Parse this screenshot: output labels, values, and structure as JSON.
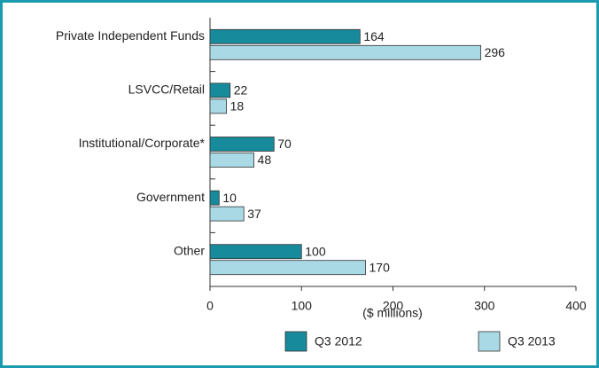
{
  "chart_data": {
    "type": "bar",
    "orientation": "horizontal",
    "categories": [
      "Private Independent Funds",
      "LSVCC/Retail",
      "Institutional/Corporate*",
      "Government",
      "Other"
    ],
    "series": [
      {
        "name": "Q3 2012",
        "color": "#178a9b",
        "values": [
          164,
          22,
          70,
          10,
          100
        ]
      },
      {
        "name": "Q3 2013",
        "color": "#a9d9e5",
        "values": [
          296,
          18,
          48,
          37,
          170
        ]
      }
    ],
    "xlabel": "($ millions)",
    "xlim": [
      0,
      400
    ],
    "xticks": [
      0,
      100,
      200,
      300,
      400
    ],
    "legend": "bottom"
  }
}
